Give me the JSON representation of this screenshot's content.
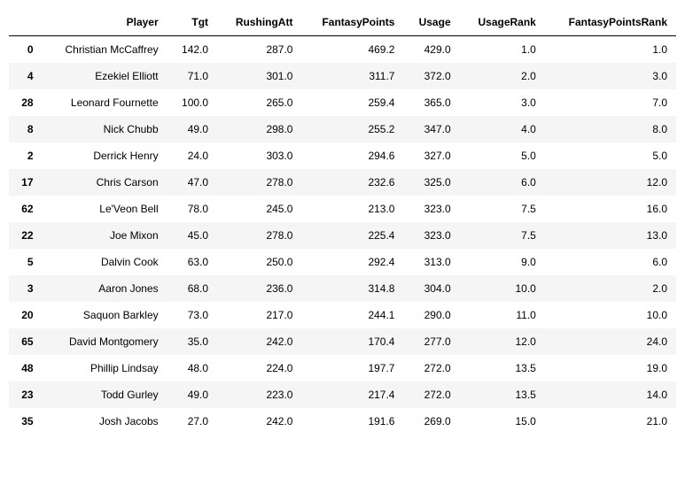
{
  "table": {
    "columns": [
      "",
      "Player",
      "Tgt",
      "RushingAtt",
      "FantasyPoints",
      "Usage",
      "UsageRank",
      "FantasyPointsRank"
    ],
    "rows": [
      [
        "0",
        "Christian McCaffrey",
        "142.0",
        "287.0",
        "469.2",
        "429.0",
        "1.0",
        "1.0"
      ],
      [
        "4",
        "Ezekiel Elliott",
        "71.0",
        "301.0",
        "311.7",
        "372.0",
        "2.0",
        "3.0"
      ],
      [
        "28",
        "Leonard Fournette",
        "100.0",
        "265.0",
        "259.4",
        "365.0",
        "3.0",
        "7.0"
      ],
      [
        "8",
        "Nick Chubb",
        "49.0",
        "298.0",
        "255.2",
        "347.0",
        "4.0",
        "8.0"
      ],
      [
        "2",
        "Derrick Henry",
        "24.0",
        "303.0",
        "294.6",
        "327.0",
        "5.0",
        "5.0"
      ],
      [
        "17",
        "Chris Carson",
        "47.0",
        "278.0",
        "232.6",
        "325.0",
        "6.0",
        "12.0"
      ],
      [
        "62",
        "Le'Veon Bell",
        "78.0",
        "245.0",
        "213.0",
        "323.0",
        "7.5",
        "16.0"
      ],
      [
        "22",
        "Joe Mixon",
        "45.0",
        "278.0",
        "225.4",
        "323.0",
        "7.5",
        "13.0"
      ],
      [
        "5",
        "Dalvin Cook",
        "63.0",
        "250.0",
        "292.4",
        "313.0",
        "9.0",
        "6.0"
      ],
      [
        "3",
        "Aaron Jones",
        "68.0",
        "236.0",
        "314.8",
        "304.0",
        "10.0",
        "2.0"
      ],
      [
        "20",
        "Saquon Barkley",
        "73.0",
        "217.0",
        "244.1",
        "290.0",
        "11.0",
        "10.0"
      ],
      [
        "65",
        "David Montgomery",
        "35.0",
        "242.0",
        "170.4",
        "277.0",
        "12.0",
        "24.0"
      ],
      [
        "48",
        "Phillip Lindsay",
        "48.0",
        "224.0",
        "197.7",
        "272.0",
        "13.5",
        "19.0"
      ],
      [
        "23",
        "Todd Gurley",
        "49.0",
        "223.0",
        "217.4",
        "272.0",
        "13.5",
        "14.0"
      ],
      [
        "35",
        "Josh Jacobs",
        "27.0",
        "242.0",
        "191.6",
        "269.0",
        "15.0",
        "21.0"
      ]
    ],
    "header_border_color": "#000000",
    "row_stripe_colors": [
      "#ffffff",
      "#f5f5f5"
    ],
    "font_size": 12,
    "index_bold": true
  }
}
